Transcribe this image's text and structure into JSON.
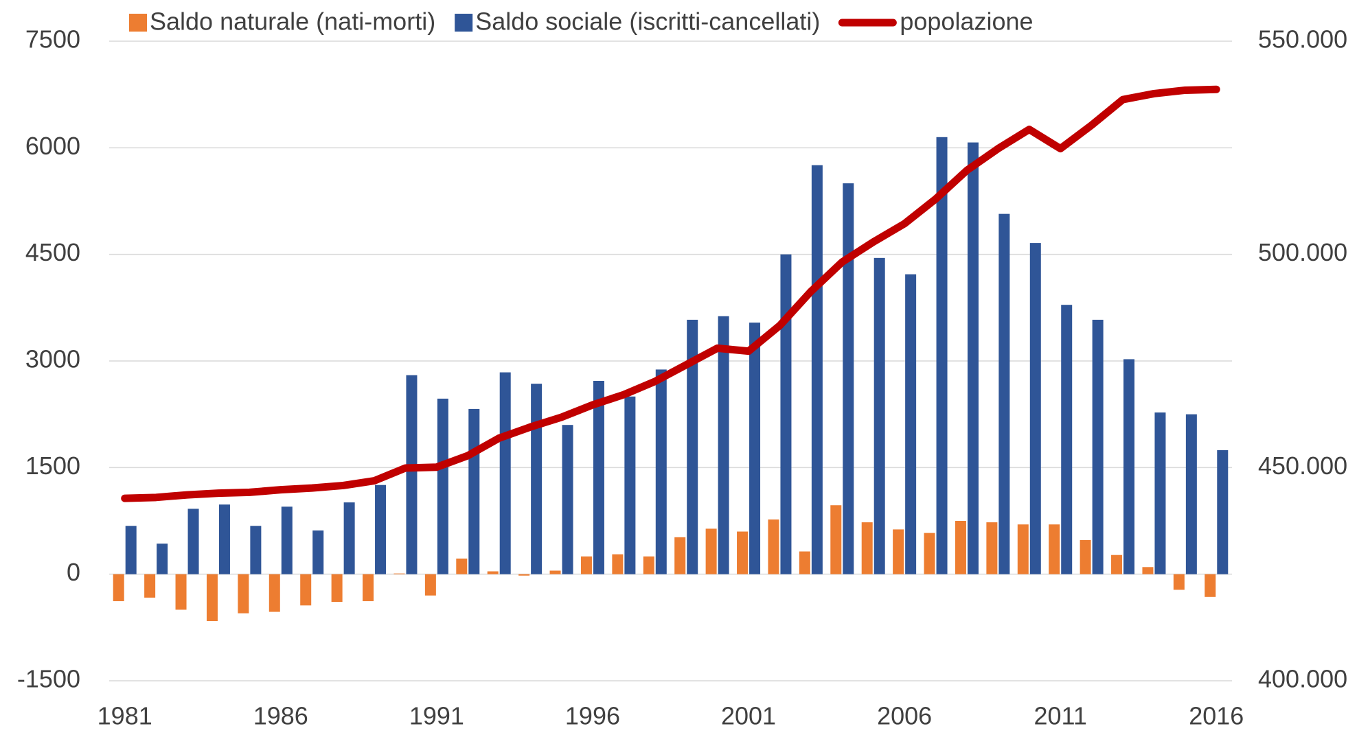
{
  "chart_data": {
    "type": "bar-line",
    "categories": [
      "1981",
      null,
      null,
      null,
      null,
      "1986",
      null,
      null,
      null,
      null,
      "1991",
      null,
      null,
      null,
      null,
      "1996",
      null,
      null,
      null,
      null,
      "2001",
      null,
      null,
      null,
      null,
      "2006",
      null,
      null,
      null,
      null,
      "2011",
      null,
      null,
      null,
      null,
      "2016"
    ],
    "series": [
      {
        "name": "Saldo naturale (nati-morti)",
        "type": "bar",
        "color": "#ed7d31",
        "values": [
          -380,
          -330,
          -500,
          -660,
          -550,
          -530,
          -440,
          -390,
          -380,
          10,
          -300,
          220,
          40,
          -20,
          50,
          250,
          280,
          250,
          520,
          640,
          600,
          770,
          320,
          970,
          730,
          630,
          580,
          750,
          730,
          700,
          700,
          480,
          270,
          100,
          -220,
          -320
        ]
      },
      {
        "name": "Saldo sociale (iscritti-cancellati)",
        "type": "bar",
        "color": "#2f5597",
        "values": [
          680,
          430,
          920,
          980,
          680,
          950,
          615,
          1010,
          1255,
          2800,
          2470,
          2325,
          2840,
          2680,
          2100,
          2720,
          2500,
          2880,
          3580,
          3630,
          3540,
          4500,
          5755,
          5500,
          4450,
          4220,
          6150,
          6075,
          5070,
          4660,
          3790,
          3580,
          3025,
          2275,
          2250,
          1745
        ]
      },
      {
        "name": "popolazione",
        "type": "line",
        "axis": "y2",
        "color": "#c00000",
        "values": [
          442800,
          443000,
          443600,
          444000,
          444200,
          444800,
          445200,
          445800,
          446900,
          449900,
          450100,
          452800,
          456900,
          459500,
          461800,
          464700,
          467100,
          470200,
          474100,
          478000,
          477300,
          483300,
          491300,
          498200,
          502900,
          507200,
          513000,
          519700,
          524800,
          529300,
          524800,
          530300,
          536300,
          537700,
          538500,
          538700
        ]
      }
    ],
    "ylim": [
      -1500,
      7500
    ],
    "yticks": [
      -1500,
      0,
      1500,
      3000,
      4500,
      6000,
      7500
    ],
    "y2lim": [
      400000,
      550000
    ],
    "y2ticks": [
      {
        "value": 400000,
        "label": "400.000"
      },
      {
        "value": 450000,
        "label": "450.000"
      },
      {
        "value": 500000,
        "label": "500.000"
      },
      {
        "value": 550000,
        "label": "550.000"
      }
    ],
    "grid": true,
    "legend": "top"
  }
}
